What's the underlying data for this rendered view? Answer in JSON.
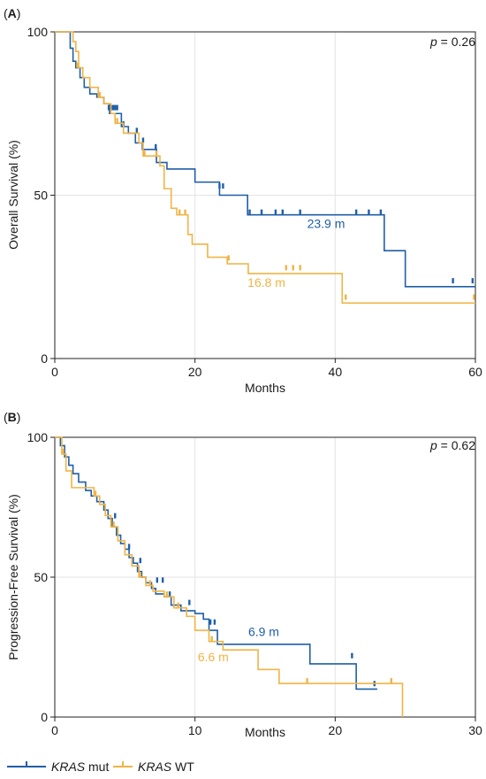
{
  "colors": {
    "mut": "#1f5fa8",
    "wt": "#f0b445",
    "grid": "#e3e3e3",
    "frame": "#222222"
  },
  "legend": [
    {
      "gene": "KRAS",
      "suffix": " mut",
      "color": "#1f5fa8"
    },
    {
      "gene": "KRAS",
      "suffix": " WT",
      "color": "#f0b445"
    }
  ],
  "chart_data": [
    {
      "type": "line",
      "panel_label": {
        "open": "(",
        "letter": "A",
        "close": ")"
      },
      "title": "",
      "xlabel": "Months",
      "ylabel": "Overall Survival (%)",
      "xlim": [
        0,
        60
      ],
      "ylim": [
        0,
        100
      ],
      "xticks": [
        0,
        20,
        40,
        60
      ],
      "yticks": [
        0,
        50,
        100
      ],
      "grid": true,
      "pvalue": {
        "symbol": "p",
        "text": " = 0.26"
      },
      "series": [
        {
          "key": "mut",
          "x": [
            0,
            1.8,
            2.2,
            2.6,
            3.0,
            3.6,
            4.2,
            5.0,
            6.0,
            7.0,
            7.8,
            9.5,
            10.5,
            11.5,
            12.5,
            14.5,
            16.0,
            20.0,
            23.5,
            27.5,
            47.0,
            50.0,
            60.0
          ],
          "y": [
            100,
            100,
            95,
            91,
            89,
            86,
            83,
            81,
            80,
            78,
            75,
            71,
            69,
            66,
            64,
            60,
            58,
            54,
            50,
            44,
            33,
            22,
            22
          ],
          "censor_x": [
            7.7,
            8.0,
            8.3,
            8.6,
            8.9,
            9.8,
            11.7,
            12.6,
            14.4,
            23.5,
            24.0,
            27.8,
            29.5,
            31.5,
            32.5,
            35.0,
            43.0,
            44.8,
            46.5,
            56.8,
            59.6
          ],
          "censor_y": [
            76,
            76,
            76,
            76,
            76,
            71,
            69,
            66,
            64,
            52,
            52,
            44,
            44,
            44,
            44,
            44,
            44,
            44,
            44,
            23,
            23
          ],
          "median": {
            "value": 23.9,
            "label": "23.9 m",
            "at_x": 36,
            "at_y": 40
          }
        },
        {
          "key": "wt",
          "x": [
            0,
            2.0,
            2.6,
            3.0,
            3.4,
            4.0,
            5.0,
            6.2,
            7.0,
            8.0,
            8.6,
            9.8,
            12.0,
            12.6,
            15.0,
            15.6,
            16.6,
            17.4,
            19.0,
            19.6,
            21.8,
            24.6,
            27.6,
            41.0,
            60.0
          ],
          "y": [
            100,
            100,
            97,
            94,
            89,
            86,
            83,
            80,
            78,
            75,
            72,
            69,
            66,
            62,
            59,
            52,
            46,
            44,
            38,
            35,
            31,
            29,
            26,
            17,
            17
          ],
          "censor_x": [
            3.2,
            6.4,
            8.9,
            12.8,
            14.5,
            17.8,
            18.6,
            24.8,
            33.0,
            34.0,
            35.0,
            41.5,
            59.8
          ],
          "censor_y": [
            89,
            80,
            72,
            62,
            62,
            44,
            44,
            30,
            27,
            27,
            27,
            18,
            18
          ],
          "median": {
            "value": 16.8,
            "label": "16.8 m",
            "at_x": 27.5,
            "at_y": 22
          }
        }
      ]
    },
    {
      "type": "line",
      "panel_label": {
        "open": "(",
        "letter": "B",
        "close": ")"
      },
      "title": "",
      "xlabel": "Months",
      "ylabel": "Progression-Free Survival (%)",
      "xlim": [
        0,
        30
      ],
      "ylim": [
        0,
        100
      ],
      "xticks": [
        0,
        10,
        20,
        30
      ],
      "yticks": [
        0,
        50,
        100
      ],
      "grid": true,
      "pvalue": {
        "symbol": "p",
        "text": " = 0.62"
      },
      "series": [
        {
          "key": "mut",
          "x": [
            0,
            0.4,
            0.7,
            1.0,
            1.3,
            1.7,
            2.2,
            2.6,
            3.0,
            3.5,
            3.8,
            4.1,
            4.4,
            4.7,
            5.0,
            5.3,
            5.6,
            5.9,
            6.2,
            6.5,
            6.9,
            7.2,
            7.8,
            8.3,
            9.0,
            10.0,
            10.6,
            11.0,
            11.6,
            18.2,
            21.5,
            23.0
          ],
          "y": [
            100,
            97,
            93,
            90,
            87,
            84,
            81,
            79,
            77,
            74,
            71,
            68,
            65,
            62,
            60,
            57,
            55,
            52,
            50,
            48,
            46,
            44,
            43,
            40,
            38,
            37,
            35,
            31,
            26,
            19,
            10,
            10
          ],
          "censor_x": [
            4.3,
            5.3,
            6.1,
            7.3,
            7.7,
            8.2,
            9.6,
            11.1,
            11.4,
            21.2,
            22.8
          ],
          "censor_y": [
            71,
            60,
            55,
            48,
            48,
            43,
            40,
            33,
            33,
            21,
            11
          ],
          "median": {
            "value": 6.9,
            "label": "6.9 m",
            "at_x": 13.8,
            "at_y": 29
          }
        },
        {
          "key": "wt",
          "x": [
            0,
            0.5,
            0.8,
            1.2,
            2.8,
            3.2,
            3.6,
            4.0,
            4.5,
            5.0,
            5.5,
            6.0,
            6.5,
            7.0,
            7.8,
            8.5,
            9.4,
            10.0,
            11.0,
            12.0,
            14.5,
            16.0,
            24.8
          ],
          "y": [
            100,
            94,
            88,
            82,
            79,
            76,
            72,
            68,
            63,
            58,
            54,
            50,
            47,
            45,
            43,
            39,
            36,
            31,
            27,
            24,
            17,
            12,
            0
          ],
          "censor_x": [
            0.6,
            2.9,
            4.2,
            6.1,
            6.8,
            8.0,
            8.8,
            11.2,
            18.0,
            24.0
          ],
          "censor_y": [
            94,
            79,
            68,
            50,
            47,
            43,
            39,
            27,
            12,
            12
          ],
          "median": {
            "value": 6.6,
            "label": "6.6 m",
            "at_x": 10.2,
            "at_y": 20
          }
        }
      ]
    }
  ]
}
